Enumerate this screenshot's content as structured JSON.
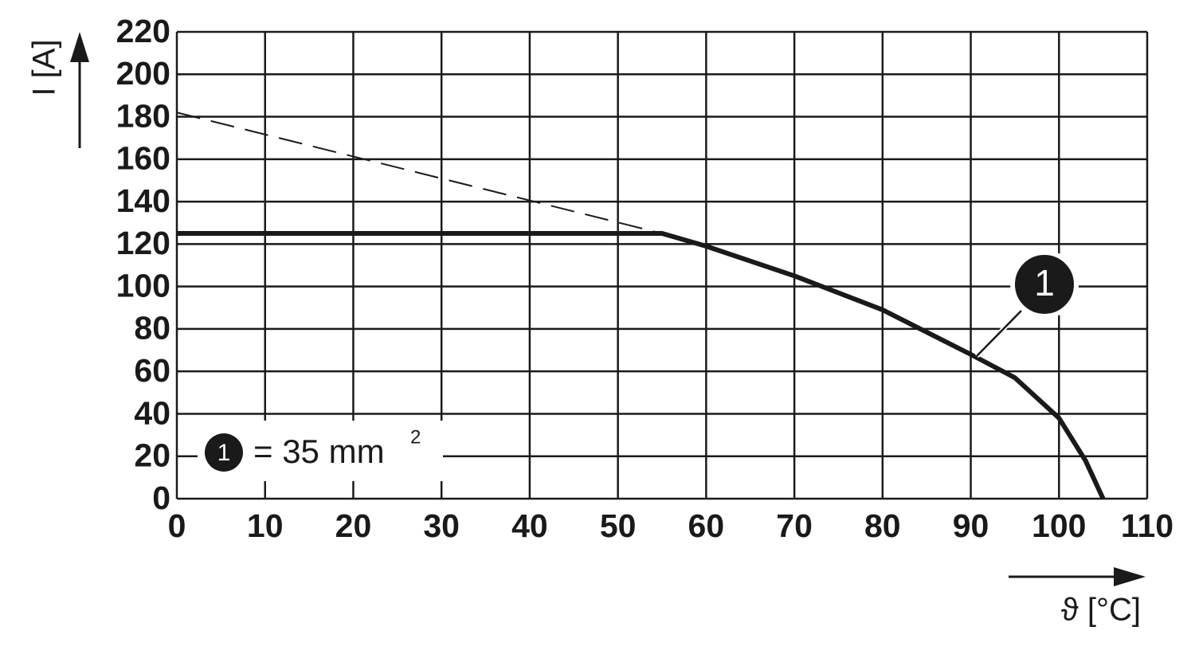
{
  "chart_data": {
    "type": "line",
    "y_label": "I [A]",
    "x_label": "ϑ [°C]",
    "xlim": [
      0,
      110
    ],
    "xticks": [
      0,
      10,
      20,
      30,
      40,
      50,
      60,
      70,
      80,
      90,
      100,
      110
    ],
    "ylim": [
      0,
      220
    ],
    "yticks": [
      0,
      20,
      40,
      60,
      80,
      100,
      120,
      140,
      160,
      180,
      200,
      220
    ],
    "grid": true,
    "series": [
      {
        "name": "1",
        "color": "#1a1a1a",
        "style": "solid",
        "x": [
          0,
          55,
          60,
          70,
          80,
          90,
          95,
          100,
          103,
          105
        ],
        "values": [
          125,
          125,
          119,
          105,
          89,
          68,
          57,
          38,
          18,
          0
        ]
      },
      {
        "color": "#1a1a1a",
        "style": "dashed",
        "x": [
          0,
          55
        ],
        "values": [
          182,
          125
        ]
      }
    ],
    "legend_text": "= 35 mm",
    "legend_sup": "2"
  }
}
